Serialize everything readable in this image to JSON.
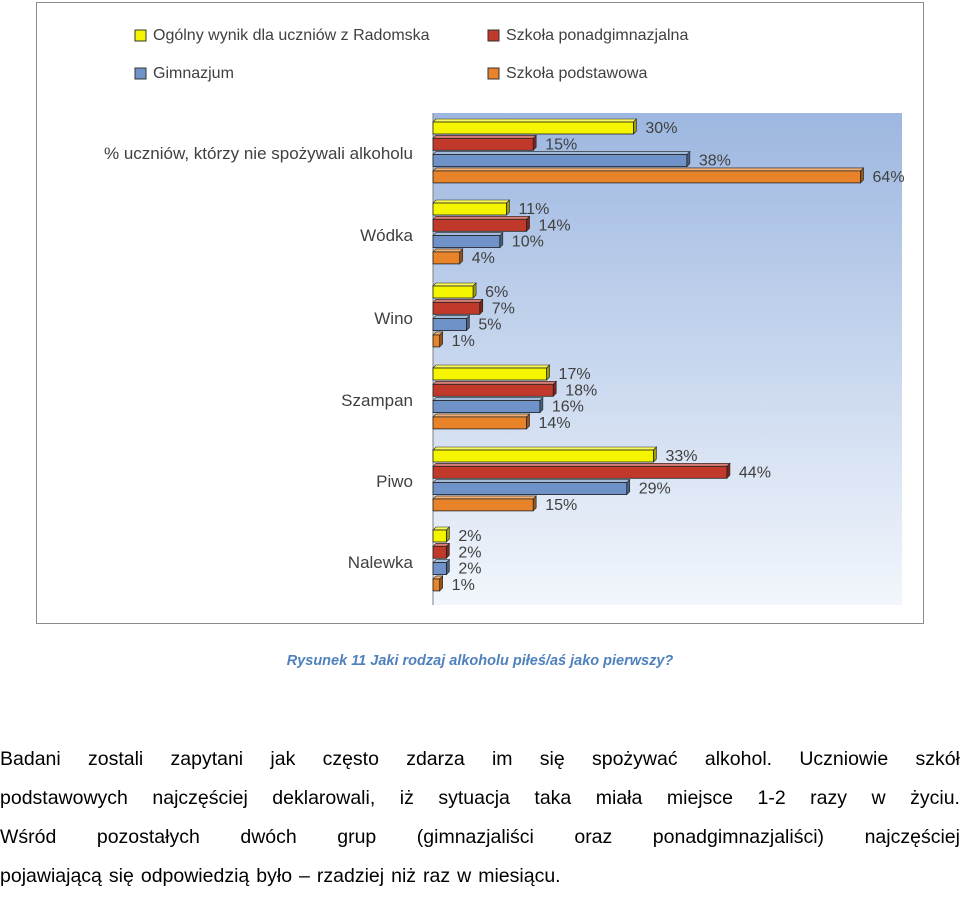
{
  "chart_data": {
    "type": "bar",
    "orientation": "horizontal",
    "categories": [
      "% uczniów, którzy nie spożywali alkoholu",
      "Wódka",
      "Wino",
      "Szampan",
      "Piwo",
      "Nalewka"
    ],
    "series": [
      {
        "name": "Ogólny wynik dla uczniów z Radomska",
        "color": "#f5f500",
        "values": [
          30,
          11,
          6,
          17,
          33,
          2
        ],
        "labels": [
          "30%",
          "11%",
          "6%",
          "17%",
          "33%",
          "2%"
        ]
      },
      {
        "name": "Szkoła ponadgimnazjalna",
        "color": "#c0392b",
        "values": [
          15,
          14,
          7,
          18,
          44,
          2
        ],
        "labels": [
          "15%",
          "14%",
          "7%",
          "18%",
          "44%",
          "2%"
        ]
      },
      {
        "name": "Gimnazjum",
        "color": "#6f93c8",
        "values": [
          38,
          10,
          5,
          16,
          29,
          2
        ],
        "labels": [
          "38%",
          "10%",
          "5%",
          "16%",
          "29%",
          "2%"
        ]
      },
      {
        "name": "Szkoła podstawowa",
        "color": "#e8832a",
        "values": [
          64,
          4,
          1,
          14,
          15,
          1
        ],
        "labels": [
          "64%",
          "4%",
          "1%",
          "14%",
          "15%",
          "1%"
        ]
      }
    ],
    "xlim": [
      0,
      70
    ],
    "grid": false,
    "legend_position": "top"
  },
  "caption": "Rysunek 11 Jaki rodzaj alkoholu piłeś/aś jako pierwszy?",
  "paragraph_lines": [
    "Badani zostali zapytani jak często zdarza im się spożywać alkohol. Uczniowie szkół",
    "podstawowych najczęściej deklarowali, iż sytuacja taka miała miejsce 1-2 razy w życiu.",
    "Wśród pozostałych dwóch grup (gimnazjaliści oraz ponadgimnazjaliści) najczęściej",
    "pojawiającą się odpowiedzią było – rzadziej niż raz w miesiącu."
  ]
}
